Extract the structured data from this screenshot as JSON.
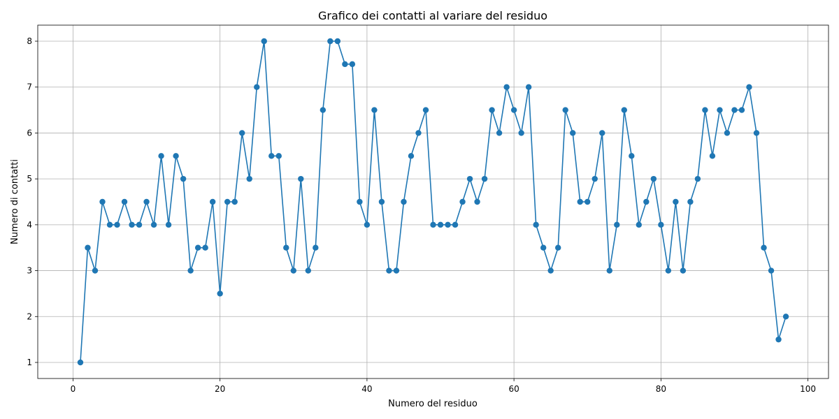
{
  "chart_data": {
    "type": "line",
    "title": "Grafico dei contatti al variare del residuo",
    "xlabel": "Numero del residuo",
    "ylabel": "Numero di contatti",
    "xlim": [
      -4.8,
      102.8
    ],
    "ylim": [
      0.65,
      8.35
    ],
    "xticks": [
      0,
      20,
      40,
      60,
      80,
      100
    ],
    "yticks": [
      1,
      2,
      3,
      4,
      5,
      6,
      7,
      8
    ],
    "grid": true,
    "marker": "circle",
    "color": "#1f77b4",
    "x": [
      1,
      2,
      3,
      4,
      5,
      6,
      7,
      8,
      9,
      10,
      11,
      12,
      13,
      14,
      15,
      16,
      17,
      18,
      19,
      20,
      21,
      22,
      23,
      24,
      25,
      26,
      27,
      28,
      29,
      30,
      31,
      32,
      33,
      34,
      35,
      36,
      37,
      38,
      39,
      40,
      41,
      42,
      43,
      44,
      45,
      46,
      47,
      48,
      49,
      50,
      51,
      52,
      53,
      54,
      55,
      56,
      57,
      58,
      59,
      60,
      61,
      62,
      63,
      64,
      65,
      66,
      67,
      68,
      69,
      70,
      71,
      72,
      73,
      74,
      75,
      76,
      77,
      78,
      79,
      80,
      81,
      82,
      83,
      84,
      85,
      86,
      87,
      88,
      89,
      90,
      91,
      92,
      93,
      94,
      95,
      96,
      97
    ],
    "values": [
      1,
      3.5,
      3,
      4.5,
      4,
      4,
      4.5,
      4,
      4,
      4.5,
      4,
      5.5,
      4,
      5.5,
      5,
      3,
      3.5,
      3.5,
      4.5,
      2.5,
      4.5,
      4.5,
      6,
      5,
      7,
      8,
      5.5,
      5.5,
      3.5,
      3,
      5,
      3,
      3.5,
      6.5,
      8,
      8,
      7.5,
      7.5,
      4.5,
      4,
      6.5,
      4.5,
      3,
      3,
      4.5,
      5.5,
      6,
      6.5,
      4,
      4,
      4,
      4,
      4.5,
      5,
      4.5,
      5,
      6.5,
      6,
      7,
      6.5,
      6,
      7,
      4,
      3.5,
      3,
      3.5,
      6.5,
      6,
      4.5,
      4.5,
      5,
      6,
      3,
      4,
      6.5,
      5.5,
      4,
      4.5,
      5,
      4,
      3,
      4.5,
      3,
      4.5,
      5,
      6.5,
      5.5,
      6.5,
      6,
      6.5,
      6.5,
      7,
      6,
      3.5,
      3,
      1.5,
      2
    ]
  }
}
